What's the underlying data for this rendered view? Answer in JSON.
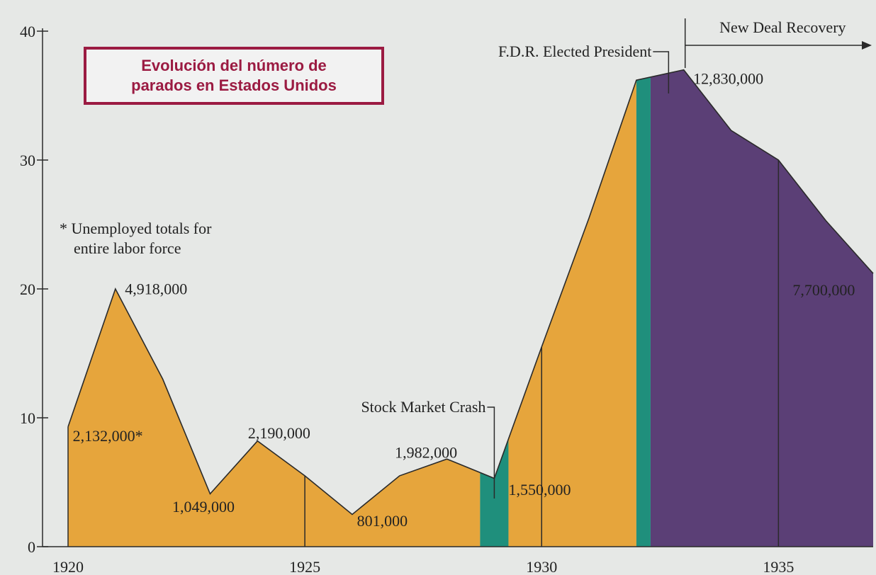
{
  "title_lines": [
    "Evolución del número de",
    "parados en Estados Unidos"
  ],
  "note_lines": [
    "* Unemployed totals for",
    "entire labor force"
  ],
  "colors": {
    "orange": "#e6a53c",
    "teal": "#1f8f7c",
    "purple": "#5b3f76",
    "title": "#9b1b42",
    "background": "#e6e8e6"
  },
  "chart_data": {
    "type": "area",
    "x": [
      1920,
      1921,
      1922,
      1923,
      1924,
      1925,
      1926,
      1927,
      1928,
      1929,
      1930,
      1931,
      1932,
      1933,
      1934,
      1935,
      1936,
      1937
    ],
    "y": [
      9.3,
      20,
      13,
      4.1,
      8.2,
      5.5,
      2.5,
      5.5,
      6.8,
      5.3,
      15.5,
      25.5,
      36.2,
      37.0,
      32.3,
      30.0,
      25.3,
      21.2
    ],
    "yticks": [
      0,
      10,
      20,
      30,
      40
    ],
    "xticks": [
      1920,
      1925,
      1930,
      1935
    ],
    "xlim": [
      1920,
      1937
    ],
    "ylim": [
      0,
      40
    ],
    "vlines": [
      1925,
      1930,
      1935
    ],
    "shaded_regions": [
      {
        "from": 1920,
        "to": 1928.7,
        "color": "orange"
      },
      {
        "from": 1928.7,
        "to": 1929.3,
        "color": "teal"
      },
      {
        "from": 1929.3,
        "to": 1932,
        "color": "orange"
      },
      {
        "from": 1932,
        "to": 1932.3,
        "color": "teal"
      },
      {
        "from": 1932.3,
        "to": 1937,
        "color": "purple"
      }
    ],
    "value_labels": [
      {
        "text": "2,132,000*",
        "x": 1920.1,
        "y": 8.2
      },
      {
        "text": "4,918,000",
        "x": 1921.2,
        "y": 19.6
      },
      {
        "text": "1,049,000",
        "x": 1922.2,
        "y": 2.7
      },
      {
        "text": "2,190,000",
        "x": 1923.8,
        "y": 8.4
      },
      {
        "text": "801,000",
        "x": 1926.1,
        "y": 1.6
      },
      {
        "text": "1,982,000",
        "x": 1926.9,
        "y": 6.9
      },
      {
        "text": "1,550,000",
        "x": 1929.3,
        "y": 4.0
      },
      {
        "text": "12,830,000",
        "x": 1933.2,
        "y": 35.9
      },
      {
        "text": "7,700,000",
        "x": 1935.3,
        "y": 19.5
      }
    ],
    "annotations": [
      {
        "text": "Stock Market Crash",
        "x": 1929.0
      },
      {
        "text": "F.D.R. Elected President",
        "x": 1932.8
      },
      {
        "text": "New Deal Recovery",
        "from": 1933.0,
        "to": 1937.0
      }
    ]
  }
}
